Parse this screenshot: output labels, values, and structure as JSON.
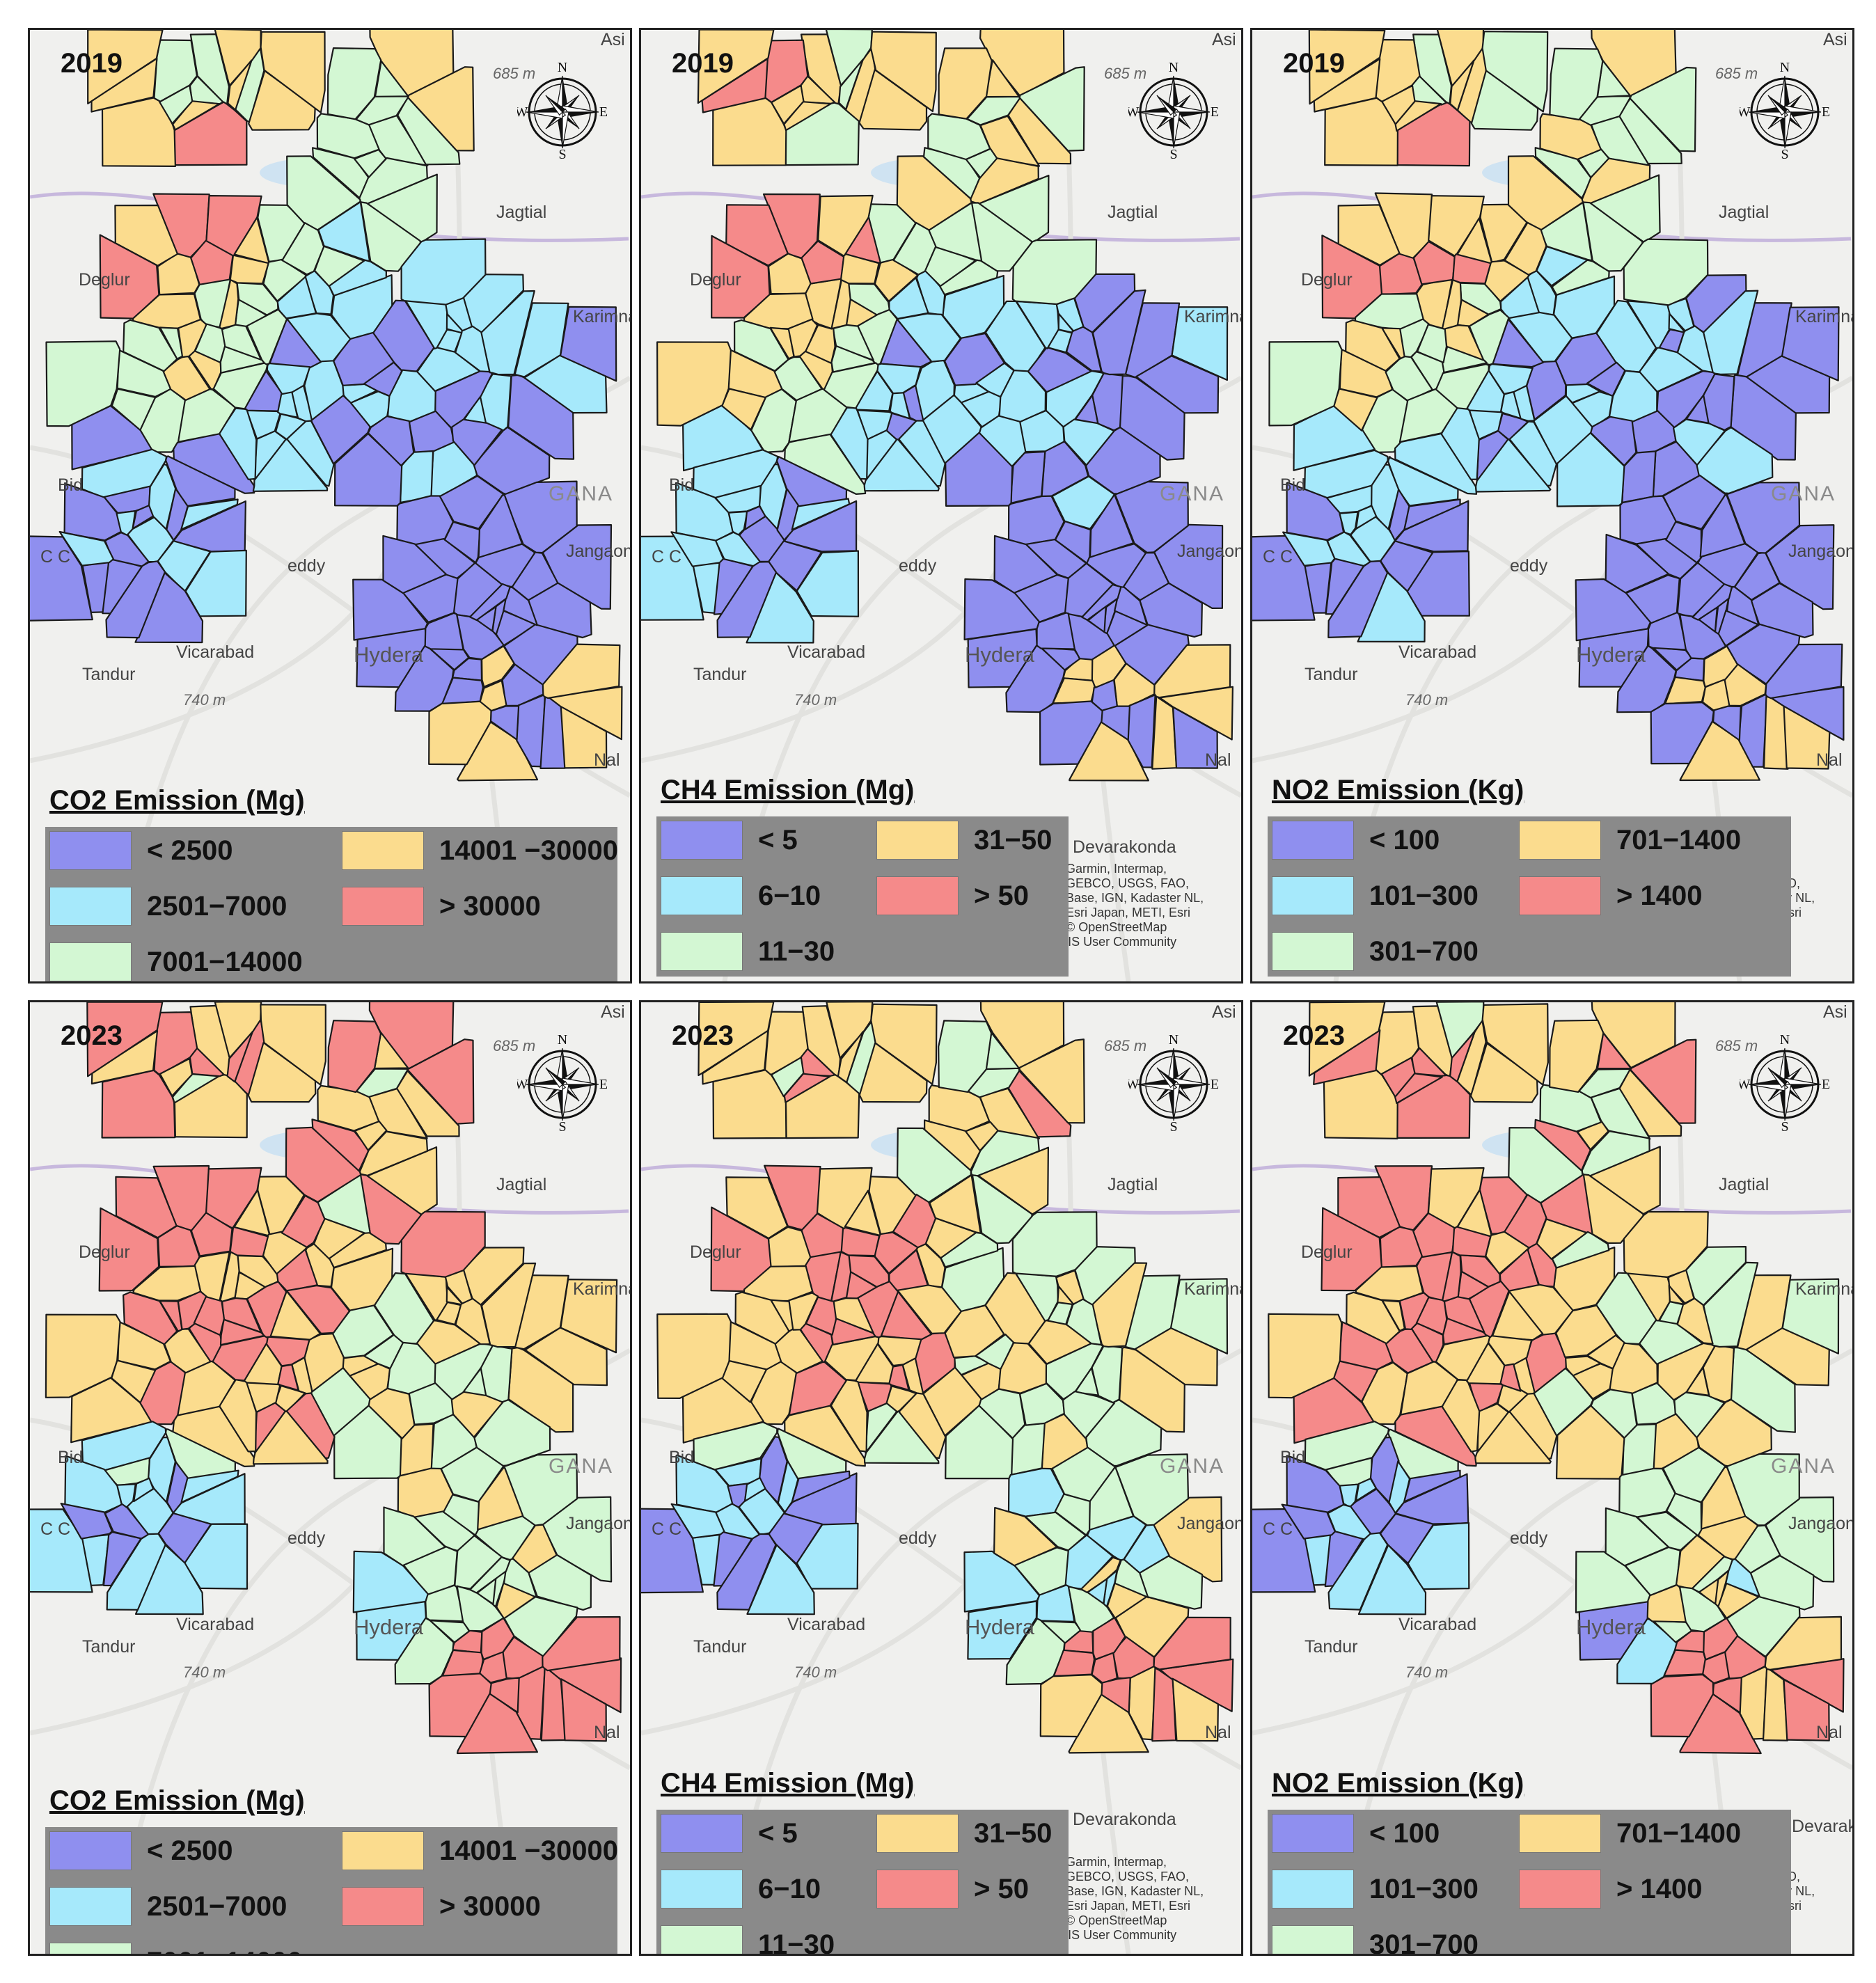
{
  "figure": {
    "rows": [
      {
        "year": "2019"
      },
      {
        "year": "2023"
      }
    ],
    "pollutants": [
      {
        "key": "co2",
        "title": "CO2 Emission (Mg)",
        "classes": [
          "< 2500",
          "2501−7000",
          "7001−14000",
          "14001 −30000",
          "> 30000"
        ]
      },
      {
        "key": "ch4",
        "title": "CH4 Emission (Mg)",
        "classes": [
          "< 5",
          "6−10",
          "11−30",
          "31−50",
          "> 50"
        ]
      },
      {
        "key": "no2",
        "title": "NO2 Emission (Kg)",
        "classes": [
          "< 100",
          "101−300",
          "301−700",
          "701−1400",
          "> 1400"
        ]
      }
    ],
    "class_colors": [
      "#8f8fef",
      "#a6e9fb",
      "#d3f7d3",
      "#fbdc8e",
      "#f58a8a"
    ],
    "compass": {
      "n": "N",
      "s": "S",
      "e": "E",
      "w": "W"
    },
    "basemap_labels": {
      "jagtial": "Jagtial",
      "deglur": "Deglur",
      "karimnagar": "Karimna",
      "bidar": "Bid",
      "telangana": "GANA",
      "jangaon": "Jangaon",
      "sangareddy": "eddy",
      "vicarabad": "Vicarabad",
      "hyderabad": "Hydera",
      "tandur": "Tandur",
      "elev740": "740 m",
      "elev685": "685 m",
      "nalgonda": "Nal",
      "asifabad": "Asi",
      "devarakonda": "Devarakonda",
      "cc": "C   C"
    },
    "attribution": {
      "line1": "Garmin, Intermap,",
      "line2": "GEBCO, USGS, FAO,",
      "line3": "Base, IGN, Kadaster NL,",
      "line4": "Esri Japan, METI, Esri",
      "line5": "© OpenStreetMap",
      "line6": "contributors, and the GIS User Community"
    }
  }
}
